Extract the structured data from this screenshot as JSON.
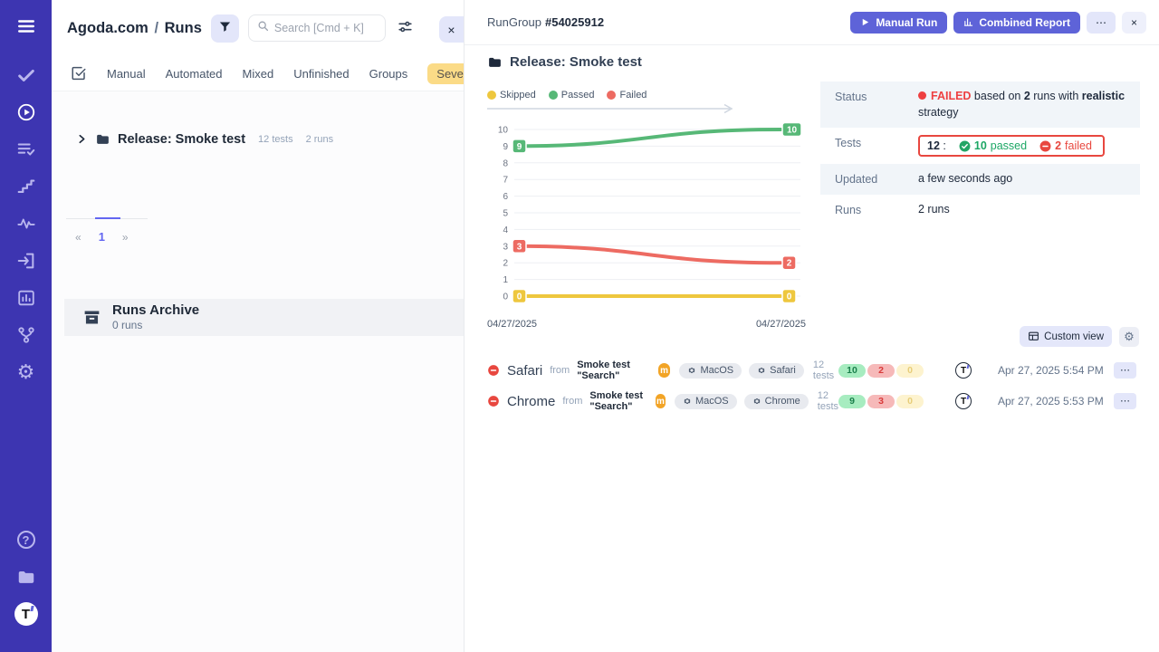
{
  "colors": {
    "sidebar_bg": "#3d35b1",
    "accent": "#5e63d8",
    "accent_light": "#e3e6fa",
    "failed_red": "#e8473f",
    "passed_green": "#1da765",
    "skipped_yellow": "#eec73e"
  },
  "sidebar": {
    "icons": [
      "menu",
      "check",
      "play-circle",
      "list-check",
      "steps",
      "activity",
      "import",
      "report",
      "branch",
      "settings",
      "help",
      "projects",
      "testomat-logo"
    ]
  },
  "left_panel": {
    "breadcrumb": {
      "project": "Agoda.com",
      "separator": "/",
      "page": "Runs"
    },
    "search_placeholder": "Search [Cmd + K]",
    "close": "×",
    "tabs": [
      {
        "label": "Manual"
      },
      {
        "label": "Automated"
      },
      {
        "label": "Mixed"
      },
      {
        "label": "Unfinished"
      },
      {
        "label": "Groups"
      },
      {
        "label": "Severity"
      }
    ],
    "tree_item": {
      "title": "Release: Smoke test",
      "tests": "12 tests",
      "runs": "2 runs"
    },
    "pagination": {
      "prev": "«",
      "page": "1",
      "next": "»"
    },
    "archive": {
      "title": "Runs Archive",
      "subtitle": "0 runs"
    }
  },
  "run_group": {
    "label": "RunGroup",
    "id": "#54025912",
    "buttons": {
      "manual_run": "Manual Run",
      "combined_report": "Combined Report",
      "more": "⋯",
      "close": "×"
    },
    "title": "Release: Smoke test",
    "status_table": {
      "status_label": "Status",
      "status_badge": "FAILED",
      "status_mid1": " based on ",
      "status_runs": "2",
      "status_mid2": " runs with ",
      "status_strategy": "realistic",
      "status_end": " strategy",
      "tests_label": "Tests",
      "tests_total": "12",
      "tests_colon": ":",
      "passed_count": "10",
      "passed_word": "passed",
      "failed_count": "2",
      "failed_word": "failed",
      "updated_label": "Updated",
      "updated_value": "a few seconds ago",
      "runs_label": "Runs",
      "runs_value": "2 runs"
    },
    "custom_view": "Custom view",
    "runs": [
      {
        "name": "Safari",
        "from": "from",
        "source": "Smoke test \"Search\"",
        "mode_badge": "m",
        "env1": "MacOS",
        "env2": "Safari",
        "tests": "12 tests",
        "passed": "10",
        "failed": "2",
        "skipped": "0",
        "date": "Apr 27, 2025 5:54 PM",
        "more": "⋯"
      },
      {
        "name": "Chrome",
        "from": "from",
        "source": "Smoke test \"Search\"",
        "mode_badge": "m",
        "env1": "MacOS",
        "env2": "Chrome",
        "tests": "12 tests",
        "passed": "9",
        "failed": "3",
        "skipped": "0",
        "date": "Apr 27, 2025 5:53 PM",
        "more": "⋯"
      }
    ]
  },
  "chart_data": {
    "type": "line",
    "title": "Release: Smoke test",
    "x": [
      "04/27/2025",
      "04/27/2025"
    ],
    "ylim": [
      0,
      10
    ],
    "y_ticks": [
      0,
      1,
      2,
      3,
      4,
      5,
      6,
      7,
      8,
      9,
      10
    ],
    "grid": true,
    "legend_position": "top",
    "series": [
      {
        "name": "Skipped",
        "values": [
          0,
          0
        ],
        "color": "#eec73e"
      },
      {
        "name": "Passed",
        "values": [
          9,
          10
        ],
        "color": "#57b877"
      },
      {
        "name": "Failed",
        "values": [
          3,
          2
        ],
        "color": "#ed6b62"
      }
    ]
  }
}
